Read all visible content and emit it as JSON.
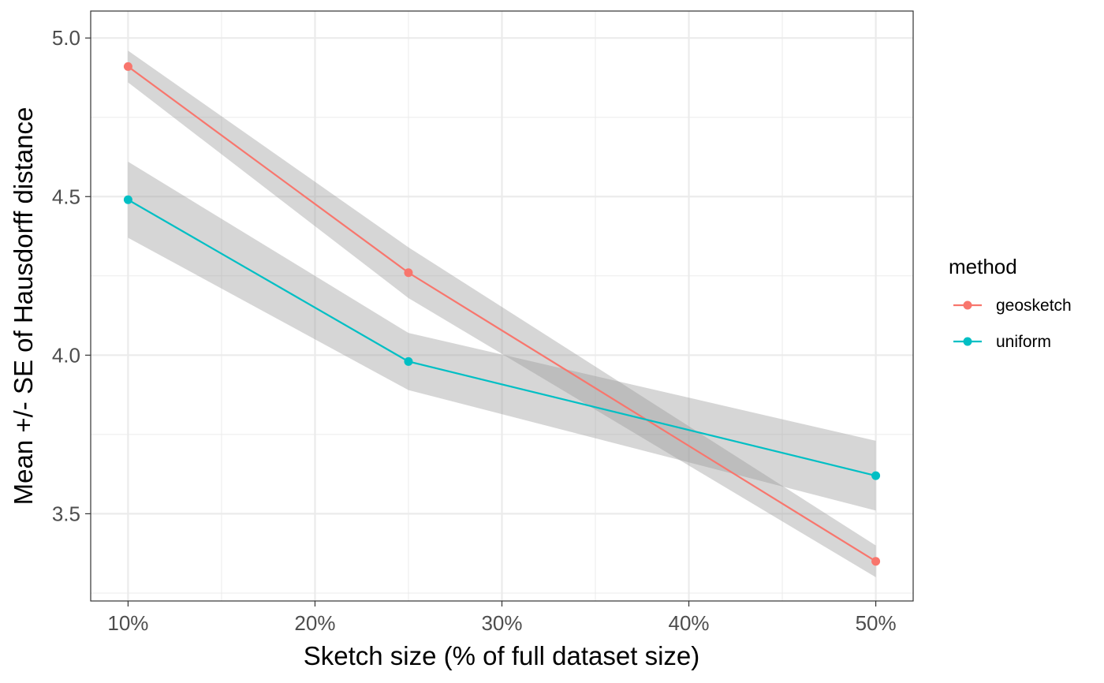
{
  "chart_data": {
    "type": "line",
    "xlabel": "Sketch size (% of full dataset size)",
    "ylabel": "Mean +/- SE of Hausdorff distance",
    "x": [
      10,
      25,
      50
    ],
    "xlim": [
      8,
      52
    ],
    "ylim": [
      3.225,
      5.085
    ],
    "x_ticks": [
      10,
      20,
      30,
      40,
      50
    ],
    "x_tick_labels": [
      "10%",
      "20%",
      "30%",
      "40%",
      "50%"
    ],
    "y_ticks": [
      3.5,
      4.0,
      4.5,
      5.0
    ],
    "y_tick_labels": [
      "3.5",
      "4.0",
      "4.5",
      "5.0"
    ],
    "grid": true,
    "ribbon_color": "#999999",
    "series": [
      {
        "name": "geosketch",
        "color": "#F8766D",
        "values": [
          4.91,
          4.26,
          3.35
        ],
        "lower": [
          4.86,
          4.18,
          3.3
        ],
        "upper": [
          4.96,
          4.34,
          3.4
        ]
      },
      {
        "name": "uniform",
        "color": "#00BFC4",
        "values": [
          4.49,
          3.98,
          3.62
        ],
        "lower": [
          4.37,
          3.89,
          3.51
        ],
        "upper": [
          4.61,
          4.07,
          3.73
        ]
      }
    ],
    "legend": {
      "title": "method",
      "position": "right"
    }
  }
}
